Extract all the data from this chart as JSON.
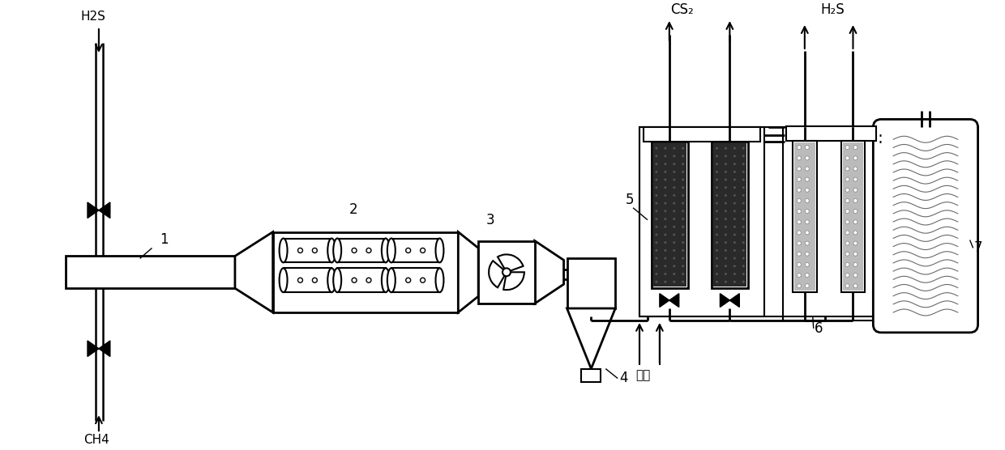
{
  "bg_color": "#ffffff",
  "line_color": "#000000",
  "dark_fill": "#2a2a2a",
  "medium_fill": "#777777",
  "light_fill": "#bbbbbb",
  "labels": {
    "H2S_in": "H2S",
    "CH4_in": "CH4",
    "CS2_out": "CS₂",
    "H2S_out": "H₂S",
    "steam": "蒸汽",
    "num1": "1",
    "num2": "2",
    "num3": "3",
    "num4": "4",
    "num5": "5",
    "num6": "6",
    "num7": "7"
  }
}
